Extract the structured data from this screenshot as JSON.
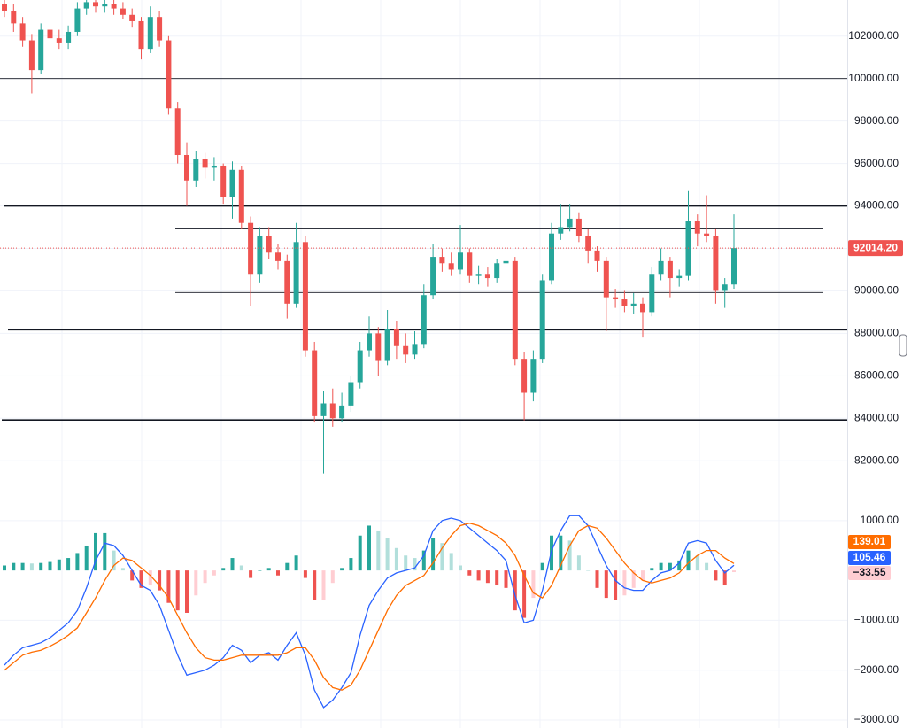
{
  "chart_data": [
    {
      "type": "candlestick",
      "up_color": "#26a69a",
      "down_color": "#ef5350",
      "ylim": [
        81300,
        103700
      ],
      "yticks": [
        {
          "value": 82000,
          "label": "82000.00"
        },
        {
          "value": 84000,
          "label": "84000.00"
        },
        {
          "value": 86000,
          "label": "86000.00"
        },
        {
          "value": 88000,
          "label": "88000.00"
        },
        {
          "value": 90000,
          "label": "90000.00"
        },
        {
          "value": 92000,
          "label": "92000.00"
        },
        {
          "value": 94000,
          "label": "94000.00"
        },
        {
          "value": 96000,
          "label": "96000.00"
        },
        {
          "value": 98000,
          "label": "98000.00"
        },
        {
          "value": 100000,
          "label": "100000.00"
        },
        {
          "value": 102000,
          "label": "102000.00"
        }
      ],
      "grid": true,
      "levels": [
        100000,
        94000,
        92920,
        89920,
        88170,
        83920
      ],
      "level_thick": [
        false,
        true,
        false,
        false,
        true,
        true
      ],
      "last_label": "92014.20",
      "ohlc": [
        [
          103500,
          103700,
          102900,
          103200
        ],
        [
          103200,
          103500,
          102200,
          102600
        ],
        [
          102600,
          102900,
          101500,
          101800
        ],
        [
          101800,
          102100,
          99300,
          100400
        ],
        [
          100400,
          102600,
          100200,
          102300
        ],
        [
          102300,
          102800,
          101500,
          101900
        ],
        [
          101900,
          102300,
          101400,
          101700
        ],
        [
          101700,
          102500,
          101400,
          102200
        ],
        [
          102200,
          103600,
          102000,
          103300
        ],
        [
          103300,
          103700,
          103000,
          103600
        ],
        [
          103600,
          103700,
          103100,
          103400
        ],
        [
          103400,
          103700,
          103100,
          103500
        ],
        [
          103500,
          103700,
          103000,
          103300
        ],
        [
          103300,
          103600,
          102800,
          103000
        ],
        [
          103000,
          103300,
          102400,
          102700
        ],
        [
          102700,
          102900,
          100900,
          101400
        ],
        [
          101400,
          103400,
          101200,
          102900
        ],
        [
          102900,
          103200,
          101500,
          101800
        ],
        [
          101800,
          102000,
          98300,
          98600
        ],
        [
          98600,
          98900,
          96000,
          96400
        ],
        [
          96400,
          97000,
          94000,
          95200
        ],
        [
          95200,
          96600,
          94900,
          96200
        ],
        [
          96200,
          96500,
          95300,
          95800
        ],
        [
          95800,
          96300,
          95200,
          95900
        ],
        [
          95900,
          96000,
          94100,
          94400
        ],
        [
          94400,
          96100,
          93400,
          95700
        ],
        [
          95700,
          95900,
          92900,
          93200
        ],
        [
          93200,
          93500,
          89300,
          90800
        ],
        [
          90800,
          93000,
          90400,
          92600
        ],
        [
          92600,
          93000,
          91500,
          91800
        ],
        [
          91800,
          92200,
          91000,
          91400
        ],
        [
          91400,
          91700,
          88700,
          89400
        ],
        [
          89400,
          93200,
          89200,
          92300
        ],
        [
          92300,
          92600,
          86900,
          87200
        ],
        [
          87200,
          87600,
          83800,
          84100
        ],
        [
          84100,
          85300,
          81400,
          84700
        ],
        [
          84700,
          85400,
          83600,
          84000
        ],
        [
          84000,
          85200,
          83800,
          84600
        ],
        [
          84600,
          86000,
          84300,
          85700
        ],
        [
          85700,
          87600,
          85400,
          87200
        ],
        [
          87200,
          88800,
          86900,
          88000
        ],
        [
          88000,
          88300,
          86000,
          86700
        ],
        [
          86700,
          89100,
          86500,
          88200
        ],
        [
          88200,
          88600,
          86800,
          87400
        ],
        [
          87400,
          88000,
          86600,
          87000
        ],
        [
          87000,
          88100,
          86800,
          87500
        ],
        [
          87500,
          90300,
          87300,
          89800
        ],
        [
          89800,
          92200,
          89600,
          91600
        ],
        [
          91600,
          92000,
          90900,
          91300
        ],
        [
          91300,
          91800,
          90700,
          91000
        ],
        [
          91000,
          93100,
          90800,
          91800
        ],
        [
          91800,
          92000,
          90400,
          90700
        ],
        [
          90700,
          91200,
          90300,
          90800
        ],
        [
          90800,
          91100,
          90200,
          90600
        ],
        [
          90600,
          91500,
          90400,
          91300
        ],
        [
          91300,
          92000,
          91000,
          91400
        ],
        [
          91400,
          91600,
          86500,
          86800
        ],
        [
          86800,
          87100,
          83900,
          85200
        ],
        [
          85200,
          87200,
          84800,
          86800
        ],
        [
          86800,
          90800,
          86600,
          90500
        ],
        [
          90500,
          93200,
          90300,
          92700
        ],
        [
          92700,
          94100,
          92400,
          93000
        ],
        [
          93000,
          94100,
          92800,
          93400
        ],
        [
          93400,
          93700,
          92300,
          92600
        ],
        [
          92600,
          92900,
          91300,
          91900
        ],
        [
          91900,
          92100,
          90900,
          91400
        ],
        [
          91400,
          91600,
          88100,
          89700
        ],
        [
          89700,
          90100,
          89200,
          89600
        ],
        [
          89600,
          90000,
          89000,
          89300
        ],
        [
          89300,
          89900,
          88900,
          89400
        ],
        [
          89400,
          89700,
          87800,
          89000
        ],
        [
          89000,
          91100,
          88800,
          90800
        ],
        [
          90800,
          92000,
          90500,
          91400
        ],
        [
          91400,
          91600,
          89700,
          90600
        ],
        [
          90600,
          91000,
          90200,
          90700
        ],
        [
          90700,
          94700,
          90500,
          93300
        ],
        [
          93300,
          93600,
          92100,
          92700
        ],
        [
          92700,
          94500,
          92300,
          92600
        ],
        [
          92600,
          92900,
          89400,
          90000
        ],
        [
          90000,
          90600,
          89200,
          90300
        ],
        [
          90300,
          93600,
          90100,
          92014.2
        ]
      ]
    },
    {
      "type": "macd",
      "ylim": [
        -3160,
        1850
      ],
      "yticks": [
        {
          "value": 1000,
          "label": "1000.00"
        },
        {
          "value": -1000,
          "label": "−1000.00"
        },
        {
          "value": -2000,
          "label": "−2000.00"
        },
        {
          "value": -3000,
          "label": "−3000.00"
        }
      ],
      "grid": true,
      "series": [
        {
          "color": "#2962ff",
          "values": [
            -1900,
            -1700,
            -1550,
            -1500,
            -1450,
            -1350,
            -1200,
            -1050,
            -800,
            -350,
            200,
            550,
            500,
            300,
            0,
            -300,
            -400,
            -700,
            -1200,
            -1700,
            -2100,
            -2050,
            -2000,
            -1900,
            -1750,
            -1500,
            -1600,
            -1850,
            -1700,
            -1650,
            -1800,
            -1500,
            -1250,
            -1700,
            -2400,
            -2750,
            -2600,
            -2350,
            -2050,
            -1300,
            -700,
            -400,
            -150,
            -50,
            0,
            50,
            300,
            800,
            1000,
            1050,
            1000,
            850,
            700,
            550,
            400,
            200,
            -500,
            -1050,
            -1000,
            -400,
            400,
            800,
            1100,
            1100,
            900,
            500,
            100,
            -200,
            -350,
            -400,
            -400,
            -200,
            -50,
            0,
            150,
            550,
            600,
            550,
            200,
            -50,
            105.46
          ]
        },
        {
          "color": "#ff6d00",
          "values": [
            -2000,
            -1850,
            -1700,
            -1640,
            -1600,
            -1520,
            -1420,
            -1300,
            -1150,
            -850,
            -550,
            -200,
            100,
            250,
            200,
            50,
            -100,
            -300,
            -550,
            -900,
            -1250,
            -1550,
            -1750,
            -1800,
            -1800,
            -1750,
            -1700,
            -1700,
            -1700,
            -1700,
            -1700,
            -1650,
            -1550,
            -1550,
            -1800,
            -2150,
            -2350,
            -2400,
            -2300,
            -2000,
            -1600,
            -1200,
            -800,
            -500,
            -300,
            -200,
            -100,
            150,
            450,
            700,
            900,
            950,
            900,
            800,
            700,
            550,
            300,
            -100,
            -450,
            -550,
            -300,
            100,
            500,
            800,
            900,
            850,
            650,
            400,
            150,
            -50,
            -200,
            -250,
            -200,
            -150,
            -50,
            150,
            300,
            400,
            400,
            250,
            139.01
          ]
        }
      ],
      "histogram": {
        "colors": [
          "#26a69a",
          "#b2dfdb",
          "#ef5350",
          "#ffcdd2"
        ],
        "values": [
          100,
          150,
          150,
          140,
          150,
          170,
          220,
          250,
          350,
          500,
          750,
          750,
          400,
          50,
          -200,
          -350,
          -300,
          -400,
          -650,
          -800,
          -850,
          -500,
          -250,
          -100,
          50,
          250,
          100,
          -150,
          0,
          50,
          -100,
          150,
          300,
          -150,
          -600,
          -600,
          -250,
          50,
          250,
          700,
          900,
          800,
          650,
          450,
          300,
          250,
          400,
          650,
          550,
          350,
          100,
          -100,
          -200,
          -250,
          -300,
          -350,
          -800,
          -950,
          -550,
          150,
          700,
          700,
          600,
          300,
          0,
          -350,
          -550,
          -600,
          -500,
          -350,
          -200,
          50,
          150,
          150,
          200,
          400,
          300,
          150,
          -200,
          -300,
          -33.55
        ]
      },
      "last_labels": [
        "105.46",
        "139.01",
        "−33.55"
      ]
    }
  ]
}
